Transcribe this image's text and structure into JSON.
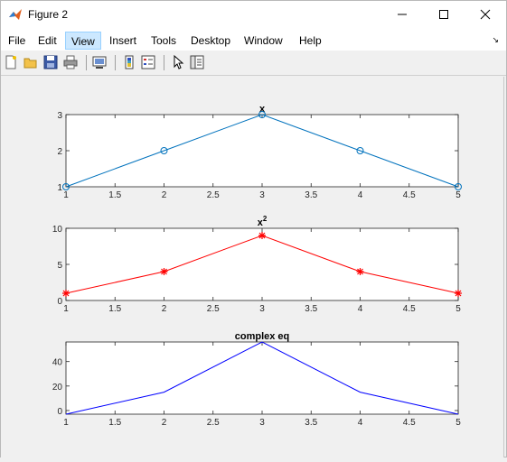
{
  "window": {
    "title": "Figure 2",
    "minimize_glyph": "—",
    "maximize_glyph": "☐",
    "close_glyph": "✕"
  },
  "menu": {
    "items": [
      "File",
      "Edit",
      "View",
      "Insert",
      "Tools",
      "Desktop",
      "Window",
      "Help"
    ],
    "active_index": 2,
    "dock_arrow": "↘"
  },
  "toolbar": {
    "icons": [
      "new-figure-icon",
      "open-file-icon",
      "save-icon",
      "print-icon",
      "link-plot-icon",
      "insert-colorbar-icon",
      "insert-legend-icon",
      "edit-plot-arrow-icon",
      "property-inspector-icon"
    ]
  },
  "colors": {
    "blue": "#0072bd",
    "red": "#ff0000",
    "pureblue": "#0000ff"
  },
  "chart_data": [
    {
      "type": "line",
      "title": "x",
      "title_sup": "",
      "x": [
        1,
        2,
        3,
        4,
        5
      ],
      "series": [
        {
          "values": [
            1,
            2,
            3,
            2,
            1
          ],
          "color": "#0072bd",
          "marker": "o"
        }
      ],
      "xlim": [
        1,
        5
      ],
      "ylim": [
        1,
        3
      ],
      "xticks": [
        "1",
        "1.5",
        "2",
        "2.5",
        "3",
        "3.5",
        "4",
        "4.5",
        "5"
      ],
      "yticks": [
        "1",
        "2",
        "3"
      ],
      "ytick_values": [
        1,
        2,
        3
      ]
    },
    {
      "type": "line",
      "title": "x",
      "title_sup": "2",
      "x": [
        1,
        2,
        3,
        4,
        5
      ],
      "series": [
        {
          "values": [
            1,
            4,
            9,
            4,
            1
          ],
          "color": "#ff0000",
          "marker": "*"
        }
      ],
      "xlim": [
        1,
        5
      ],
      "ylim": [
        0,
        10
      ],
      "xticks": [
        "1",
        "1.5",
        "2",
        "2.5",
        "3",
        "3.5",
        "4",
        "4.5",
        "5"
      ],
      "yticks": [
        "0",
        "5",
        "10"
      ],
      "ytick_values": [
        0,
        5,
        10
      ]
    },
    {
      "type": "line",
      "title": "complex eq",
      "title_sup": "",
      "x": [
        1,
        2,
        3,
        4,
        5
      ],
      "series": [
        {
          "values": [
            -3,
            15,
            56,
            15,
            -3
          ],
          "color": "#0000ff",
          "marker": ""
        }
      ],
      "xlim": [
        1,
        5
      ],
      "ylim": [
        -3,
        56
      ],
      "xticks": [
        "1",
        "1.5",
        "2",
        "2.5",
        "3",
        "3.5",
        "4",
        "4.5",
        "5"
      ],
      "yticks": [
        "0",
        "20",
        "40"
      ],
      "ytick_values": [
        0,
        20,
        40
      ]
    }
  ]
}
